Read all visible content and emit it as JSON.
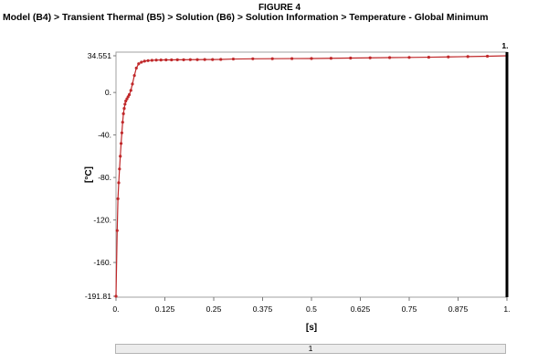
{
  "figure_label": "FIGURE 4",
  "breadcrumb": "Model (B4) > Transient Thermal (B5) > Solution (B6) > Solution Information > Temperature - Global Minimum",
  "colors": {
    "series": "#c0282a",
    "marker_line": "#000000",
    "gridline": "#dcdcdc"
  },
  "chart_data": {
    "type": "line",
    "xlabel": "[s]",
    "ylabel": "[°C]",
    "xlim": [
      0,
      1
    ],
    "ylim": [
      -191.81,
      34.551
    ],
    "x_ticks": [
      {
        "v": 0,
        "label": "0."
      },
      {
        "v": 0.125,
        "label": "0.125"
      },
      {
        "v": 0.25,
        "label": "0.25"
      },
      {
        "v": 0.375,
        "label": "0.375"
      },
      {
        "v": 0.5,
        "label": "0.5"
      },
      {
        "v": 0.625,
        "label": "0.625"
      },
      {
        "v": 0.75,
        "label": "0.75"
      },
      {
        "v": 0.875,
        "label": "0.875"
      },
      {
        "v": 1,
        "label": "1."
      }
    ],
    "y_ticks": [
      {
        "v": 34.551,
        "label": "34.551"
      },
      {
        "v": 0,
        "label": "0."
      },
      {
        "v": -40,
        "label": "-40."
      },
      {
        "v": -80,
        "label": "-80."
      },
      {
        "v": -120,
        "label": "-120."
      },
      {
        "v": -160,
        "label": "-160."
      },
      {
        "v": -191.81,
        "label": "-191.81"
      }
    ],
    "current_marker": {
      "x": 1,
      "label": "1."
    },
    "series": [
      {
        "x": [
          0,
          0.003,
          0.005,
          0.007,
          0.009,
          0.011,
          0.013,
          0.015,
          0.017,
          0.019,
          0.021,
          0.023,
          0.025,
          0.028,
          0.031,
          0.034,
          0.038,
          0.042,
          0.047,
          0.052,
          0.058,
          0.065,
          0.073,
          0.082,
          0.092,
          0.103,
          0.115,
          0.128,
          0.142,
          0.157,
          0.173,
          0.19,
          0.208,
          0.227,
          0.247,
          0.268,
          0.3,
          0.35,
          0.4,
          0.45,
          0.5,
          0.55,
          0.6,
          0.65,
          0.7,
          0.75,
          0.8,
          0.85,
          0.9,
          0.95,
          1.0
        ],
        "y": [
          -191.81,
          -130,
          -100,
          -85,
          -72,
          -60,
          -48,
          -38,
          -28,
          -20,
          -15,
          -11,
          -8,
          -6,
          -4,
          -2,
          2,
          8,
          16,
          23,
          27,
          28.5,
          29.5,
          30,
          30.3,
          30.5,
          30.6,
          30.7,
          30.7,
          30.8,
          30.8,
          30.9,
          30.9,
          31,
          31,
          31.1,
          31.5,
          31.7,
          31.8,
          31.9,
          32,
          32.2,
          32.4,
          32.6,
          32.8,
          33,
          33.2,
          33.5,
          33.8,
          34.1,
          34.551
        ]
      }
    ]
  },
  "scrollbar": {
    "label": "1"
  }
}
